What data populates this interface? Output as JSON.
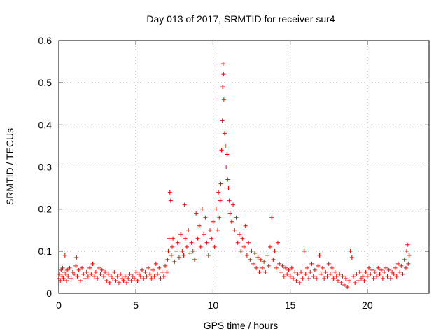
{
  "chart_data": {
    "type": "scatter",
    "title": "Day 013 of 2017, SRMTID for receiver sur4",
    "xlabel": "GPS time / hours",
    "ylabel": "SRMTID / TECUs",
    "xlim": [
      0,
      24
    ],
    "ylim": [
      0,
      0.6
    ],
    "xticks": [
      0,
      5,
      10,
      15,
      20
    ],
    "xtick_labels": [
      "0",
      "5",
      "10",
      "15",
      "20"
    ],
    "yticks": [
      0,
      0.1,
      0.2,
      0.3,
      0.4,
      0.5,
      0.6
    ],
    "ytick_labels": [
      "0",
      "0.1",
      "0.2",
      "0.3",
      "0.4",
      "0.5",
      "0.6"
    ],
    "grid": true,
    "marker": "+",
    "color": "#ff0000",
    "series": [
      {
        "name": "SRMTID",
        "points": [
          [
            0.0,
            0.035
          ],
          [
            0.05,
            0.045
          ],
          [
            0.1,
            0.03
          ],
          [
            0.15,
            0.055
          ],
          [
            0.2,
            0.04
          ],
          [
            0.25,
            0.06
          ],
          [
            0.3,
            0.035
          ],
          [
            0.35,
            0.05
          ],
          [
            0.4,
            0.09
          ],
          [
            0.45,
            0.045
          ],
          [
            0.5,
            0.03
          ],
          [
            0.55,
            0.055
          ],
          [
            0.6,
            0.04
          ],
          [
            0.7,
            0.06
          ],
          [
            0.8,
            0.035
          ],
          [
            0.9,
            0.05
          ],
          [
            1.0,
            0.045
          ],
          [
            1.1,
            0.065
          ],
          [
            1.15,
            0.085
          ],
          [
            1.2,
            0.04
          ],
          [
            1.3,
            0.055
          ],
          [
            1.4,
            0.03
          ],
          [
            1.5,
            0.06
          ],
          [
            1.6,
            0.045
          ],
          [
            1.7,
            0.035
          ],
          [
            1.8,
            0.05
          ],
          [
            1.9,
            0.04
          ],
          [
            2.0,
            0.06
          ],
          [
            2.1,
            0.045
          ],
          [
            2.2,
            0.07
          ],
          [
            2.3,
            0.04
          ],
          [
            2.4,
            0.05
          ],
          [
            2.5,
            0.035
          ],
          [
            2.6,
            0.06
          ],
          [
            2.7,
            0.045
          ],
          [
            2.8,
            0.055
          ],
          [
            2.9,
            0.04
          ],
          [
            3.0,
            0.05
          ],
          [
            3.1,
            0.03
          ],
          [
            3.2,
            0.045
          ],
          [
            3.3,
            0.025
          ],
          [
            3.4,
            0.04
          ],
          [
            3.5,
            0.035
          ],
          [
            3.6,
            0.05
          ],
          [
            3.7,
            0.03
          ],
          [
            3.8,
            0.04
          ],
          [
            3.9,
            0.025
          ],
          [
            4.0,
            0.045
          ],
          [
            4.1,
            0.035
          ],
          [
            4.2,
            0.03
          ],
          [
            4.3,
            0.04
          ],
          [
            4.4,
            0.025
          ],
          [
            4.5,
            0.035
          ],
          [
            4.6,
            0.045
          ],
          [
            4.7,
            0.03
          ],
          [
            4.8,
            0.04
          ],
          [
            4.9,
            0.035
          ],
          [
            5.0,
            0.05
          ],
          [
            5.1,
            0.03
          ],
          [
            5.2,
            0.045
          ],
          [
            5.3,
            0.04
          ],
          [
            5.4,
            0.055
          ],
          [
            5.5,
            0.035
          ],
          [
            5.6,
            0.05
          ],
          [
            5.7,
            0.04
          ],
          [
            5.8,
            0.06
          ],
          [
            5.9,
            0.045
          ],
          [
            6.0,
            0.035
          ],
          [
            6.1,
            0.055
          ],
          [
            6.2,
            0.04
          ],
          [
            6.3,
            0.07
          ],
          [
            6.4,
            0.045
          ],
          [
            6.5,
            0.06
          ],
          [
            6.6,
            0.035
          ],
          [
            6.7,
            0.05
          ],
          [
            6.8,
            0.04
          ],
          [
            6.9,
            0.065
          ],
          [
            7.0,
            0.05
          ],
          [
            7.05,
            0.08
          ],
          [
            7.1,
            0.1
          ],
          [
            7.15,
            0.13
          ],
          [
            7.2,
            0.24
          ],
          [
            7.25,
            0.22
          ],
          [
            7.3,
            0.09
          ],
          [
            7.35,
            0.11
          ],
          [
            7.4,
            0.13
          ],
          [
            7.5,
            0.075
          ],
          [
            7.6,
            0.1
          ],
          [
            7.7,
            0.12
          ],
          [
            7.8,
            0.085
          ],
          [
            7.9,
            0.14
          ],
          [
            8.0,
            0.1
          ],
          [
            8.1,
            0.09
          ],
          [
            8.15,
            0.21
          ],
          [
            8.2,
            0.13
          ],
          [
            8.3,
            0.11
          ],
          [
            8.4,
            0.15
          ],
          [
            8.5,
            0.095
          ],
          [
            8.6,
            0.12
          ],
          [
            8.7,
            0.1
          ],
          [
            8.8,
            0.08
          ],
          [
            8.9,
            0.19
          ],
          [
            9.0,
            0.13
          ],
          [
            9.1,
            0.16
          ],
          [
            9.2,
            0.11
          ],
          [
            9.3,
            0.2
          ],
          [
            9.4,
            0.14
          ],
          [
            9.5,
            0.18
          ],
          [
            9.6,
            0.12
          ],
          [
            9.7,
            0.09
          ],
          [
            9.8,
            0.15
          ],
          [
            9.9,
            0.13
          ],
          [
            10.0,
            0.17
          ],
          [
            10.1,
            0.11
          ],
          [
            10.2,
            0.2
          ],
          [
            10.3,
            0.15
          ],
          [
            10.35,
            0.24
          ],
          [
            10.4,
            0.18
          ],
          [
            10.45,
            0.22
          ],
          [
            10.5,
            0.26
          ],
          [
            10.55,
            0.34
          ],
          [
            10.6,
            0.41
          ],
          [
            10.62,
            0.49
          ],
          [
            10.65,
            0.545
          ],
          [
            10.68,
            0.52
          ],
          [
            10.7,
            0.46
          ],
          [
            10.75,
            0.38
          ],
          [
            10.8,
            0.35
          ],
          [
            10.85,
            0.3
          ],
          [
            10.9,
            0.33
          ],
          [
            10.95,
            0.27
          ],
          [
            11.0,
            0.25
          ],
          [
            11.05,
            0.22
          ],
          [
            11.1,
            0.19
          ],
          [
            11.2,
            0.17
          ],
          [
            11.3,
            0.21
          ],
          [
            11.4,
            0.15
          ],
          [
            11.5,
            0.18
          ],
          [
            11.6,
            0.12
          ],
          [
            11.7,
            0.14
          ],
          [
            11.8,
            0.1
          ],
          [
            11.9,
            0.13
          ],
          [
            12.0,
            0.11
          ],
          [
            12.1,
            0.16
          ],
          [
            12.2,
            0.09
          ],
          [
            12.3,
            0.12
          ],
          [
            12.4,
            0.08
          ],
          [
            12.5,
            0.1
          ],
          [
            12.6,
            0.07
          ],
          [
            12.7,
            0.095
          ],
          [
            12.8,
            0.06
          ],
          [
            12.9,
            0.085
          ],
          [
            13.0,
            0.05
          ],
          [
            13.1,
            0.08
          ],
          [
            13.2,
            0.06
          ],
          [
            13.3,
            0.075
          ],
          [
            13.4,
            0.05
          ],
          [
            13.5,
            0.09
          ],
          [
            13.6,
            0.065
          ],
          [
            13.7,
            0.11
          ],
          [
            13.8,
            0.18
          ],
          [
            13.9,
            0.08
          ],
          [
            14.0,
            0.1
          ],
          [
            14.1,
            0.06
          ],
          [
            14.2,
            0.12
          ],
          [
            14.3,
            0.07
          ],
          [
            14.4,
            0.05
          ],
          [
            14.5,
            0.065
          ],
          [
            14.6,
            0.04
          ],
          [
            14.7,
            0.06
          ],
          [
            14.8,
            0.045
          ],
          [
            14.9,
            0.055
          ],
          [
            15.0,
            0.04
          ],
          [
            15.1,
            0.06
          ],
          [
            15.2,
            0.035
          ],
          [
            15.3,
            0.05
          ],
          [
            15.4,
            0.03
          ],
          [
            15.5,
            0.045
          ],
          [
            15.6,
            0.025
          ],
          [
            15.7,
            0.05
          ],
          [
            15.8,
            0.035
          ],
          [
            15.9,
            0.1
          ],
          [
            16.0,
            0.045
          ],
          [
            16.1,
            0.06
          ],
          [
            16.2,
            0.035
          ],
          [
            16.3,
            0.05
          ],
          [
            16.4,
            0.07
          ],
          [
            16.5,
            0.04
          ],
          [
            16.6,
            0.055
          ],
          [
            16.7,
            0.035
          ],
          [
            16.8,
            0.065
          ],
          [
            16.9,
            0.09
          ],
          [
            17.0,
            0.045
          ],
          [
            17.1,
            0.06
          ],
          [
            17.2,
            0.035
          ],
          [
            17.3,
            0.05
          ],
          [
            17.4,
            0.04
          ],
          [
            17.5,
            0.07
          ],
          [
            17.6,
            0.045
          ],
          [
            17.7,
            0.06
          ],
          [
            17.8,
            0.035
          ],
          [
            17.9,
            0.05
          ],
          [
            18.0,
            0.04
          ],
          [
            18.1,
            0.03
          ],
          [
            18.2,
            0.045
          ],
          [
            18.3,
            0.025
          ],
          [
            18.4,
            0.04
          ],
          [
            18.5,
            0.02
          ],
          [
            18.6,
            0.035
          ],
          [
            18.7,
            0.015
          ],
          [
            18.8,
            0.03
          ],
          [
            18.9,
            0.1
          ],
          [
            19.0,
            0.085
          ],
          [
            19.1,
            0.04
          ],
          [
            19.2,
            0.025
          ],
          [
            19.3,
            0.045
          ],
          [
            19.4,
            0.03
          ],
          [
            19.5,
            0.05
          ],
          [
            19.6,
            0.035
          ],
          [
            19.7,
            0.04
          ],
          [
            19.8,
            0.03
          ],
          [
            19.9,
            0.05
          ],
          [
            20.0,
            0.04
          ],
          [
            20.1,
            0.06
          ],
          [
            20.2,
            0.045
          ],
          [
            20.3,
            0.055
          ],
          [
            20.4,
            0.035
          ],
          [
            20.5,
            0.05
          ],
          [
            20.6,
            0.04
          ],
          [
            20.7,
            0.06
          ],
          [
            20.8,
            0.045
          ],
          [
            20.9,
            0.055
          ],
          [
            21.0,
            0.035
          ],
          [
            21.1,
            0.05
          ],
          [
            21.2,
            0.06
          ],
          [
            21.3,
            0.04
          ],
          [
            21.4,
            0.055
          ],
          [
            21.5,
            0.035
          ],
          [
            21.6,
            0.05
          ],
          [
            21.7,
            0.045
          ],
          [
            21.8,
            0.06
          ],
          [
            21.9,
            0.04
          ],
          [
            22.0,
            0.07
          ],
          [
            22.1,
            0.05
          ],
          [
            22.2,
            0.065
          ],
          [
            22.3,
            0.045
          ],
          [
            22.4,
            0.08
          ],
          [
            22.5,
            0.06
          ],
          [
            22.55,
            0.1
          ],
          [
            22.6,
            0.115
          ],
          [
            22.65,
            0.07
          ],
          [
            22.7,
            0.09
          ]
        ]
      }
    ]
  }
}
